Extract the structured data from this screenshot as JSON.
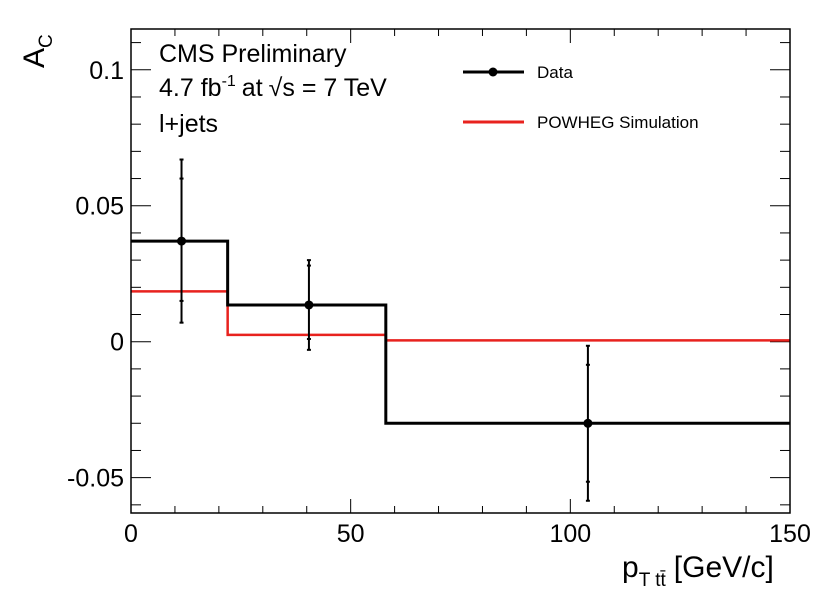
{
  "chart_data": {
    "type": "line",
    "xlim": [
      0,
      150
    ],
    "ylim": [
      -0.063,
      0.115
    ],
    "xlabel": {
      "main": "p",
      "sub": "T tt̄",
      "unit": "[GeV/c]"
    },
    "ylabel": {
      "main": "A",
      "sub": "C"
    },
    "x_ticks": [
      0,
      50,
      100,
      150
    ],
    "x_tick_labels": [
      "0",
      "50",
      "100",
      "150"
    ],
    "y_ticks": [
      -0.05,
      0,
      0.05,
      0.1
    ],
    "y_tick_labels": [
      "-0.05",
      "0",
      "0.05",
      "0.1"
    ],
    "annotations": {
      "line1": "CMS Preliminary",
      "line2_prefix": "4.7 fb",
      "line2_sup": "-1",
      "line2_at": "at",
      "line2_sqrt": "√",
      "line2_rest": "s = 7 TeV",
      "line3": "l+jets"
    },
    "legend": {
      "position": "top-right",
      "entries": [
        {
          "label": "Data",
          "style": "marker-line"
        },
        {
          "label": "POWHEG Simulation",
          "style": "line"
        }
      ]
    },
    "series": [
      {
        "name": "Data",
        "color": "#000000",
        "bin_edges": [
          0,
          22,
          58,
          150
        ],
        "values": [
          0.037,
          0.0135,
          -0.03
        ],
        "points": [
          {
            "x": 11.5,
            "y": 0.037,
            "err_low": 0.03,
            "err_high": 0.03,
            "inner_low": 0.022,
            "inner_high": 0.023
          },
          {
            "x": 40.5,
            "y": 0.0135,
            "err_low": 0.0165,
            "err_high": 0.0165,
            "inner_low": 0.0125,
            "inner_high": 0.0145
          },
          {
            "x": 104,
            "y": -0.03,
            "err_low": 0.0285,
            "err_high": 0.0285,
            "inner_low": 0.0215,
            "inner_high": 0.0215
          }
        ]
      },
      {
        "name": "POWHEG Simulation",
        "color": "#e8221e",
        "bin_edges": [
          0,
          22,
          58,
          150
        ],
        "values": [
          0.0185,
          0.0025,
          0.0005
        ]
      }
    ]
  }
}
